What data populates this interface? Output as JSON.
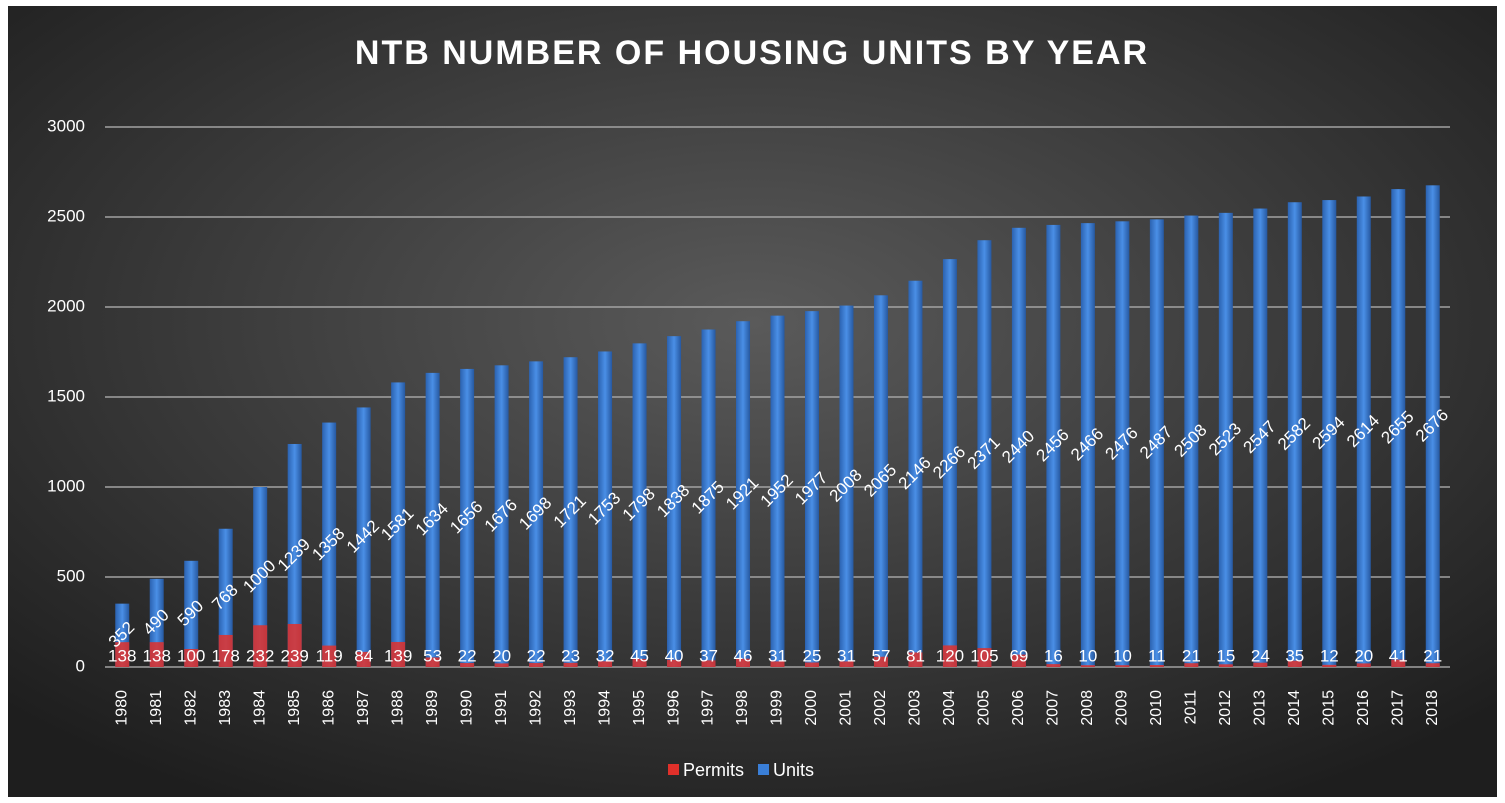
{
  "chart_data": {
    "type": "bar",
    "title": "NTB NUMBER OF HOUSING UNITS BY YEAR",
    "categories": [
      "1980",
      "1981",
      "1982",
      "1983",
      "1984",
      "1985",
      "1986",
      "1987",
      "1988",
      "1989",
      "1990",
      "1991",
      "1992",
      "1993",
      "1994",
      "1995",
      "1996",
      "1997",
      "1998",
      "1999",
      "2000",
      "2001",
      "2002",
      "2003",
      "2004",
      "2005",
      "2006",
      "2007",
      "2008",
      "2009",
      "2010",
      "2011",
      "2012",
      "2013",
      "2014",
      "2015",
      "2016",
      "2017",
      "2018"
    ],
    "series": [
      {
        "name": "Permits",
        "color": "#e0302a",
        "values": [
          138,
          138,
          100,
          178,
          232,
          239,
          119,
          84,
          139,
          53,
          22,
          20,
          22,
          23,
          32,
          45,
          40,
          37,
          46,
          31,
          25,
          31,
          57,
          81,
          120,
          105,
          69,
          16,
          10,
          10,
          11,
          21,
          15,
          24,
          35,
          12,
          20,
          41,
          21
        ]
      },
      {
        "name": "Units",
        "color": "#3a7fd8",
        "values": [
          352,
          490,
          590,
          768,
          1000,
          1239,
          1358,
          1442,
          1581,
          1634,
          1656,
          1676,
          1698,
          1721,
          1753,
          1798,
          1838,
          1875,
          1921,
          1952,
          1977,
          2008,
          2065,
          2146,
          2266,
          2371,
          2440,
          2456,
          2466,
          2476,
          2487,
          2508,
          2523,
          2547,
          2582,
          2594,
          2614,
          2655,
          2676
        ]
      }
    ],
    "ylim": [
      0,
      3000
    ],
    "yticks": [
      0,
      500,
      1000,
      1500,
      2000,
      2500,
      3000
    ],
    "grid": true,
    "legend": "bottom"
  }
}
